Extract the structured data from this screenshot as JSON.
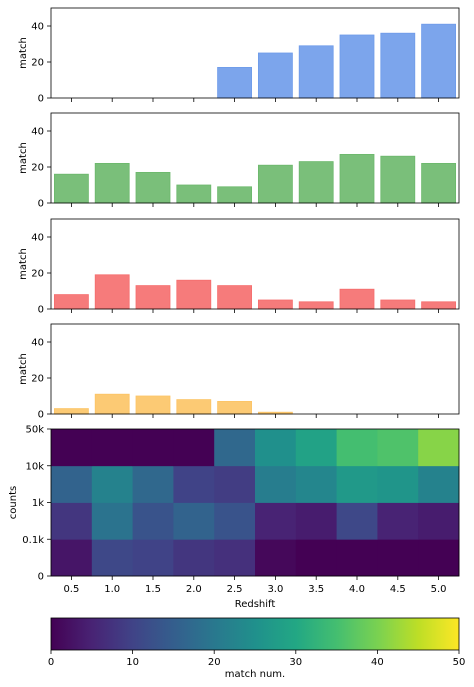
{
  "chart_data": [
    {
      "type": "bar",
      "x": [
        0.5,
        1.0,
        1.5,
        2.0,
        2.5,
        3.0,
        3.5,
        4.0,
        4.5,
        5.0
      ],
      "values": [
        0,
        0,
        0,
        0,
        17,
        25,
        29,
        35,
        36,
        41
      ],
      "ylabel": "match",
      "ylim": [
        0,
        50
      ],
      "yticks": [
        "0",
        "20",
        "40"
      ],
      "color": "#6e9bea"
    },
    {
      "type": "bar",
      "x": [
        0.5,
        1.0,
        1.5,
        2.0,
        2.5,
        3.0,
        3.5,
        4.0,
        4.5,
        5.0
      ],
      "values": [
        16,
        22,
        17,
        10,
        9,
        21,
        23,
        27,
        26,
        22
      ],
      "ylabel": "match",
      "ylim": [
        0,
        50
      ],
      "yticks": [
        "0",
        "20",
        "40"
      ],
      "color": "#6cb86c"
    },
    {
      "type": "bar",
      "x": [
        0.5,
        1.0,
        1.5,
        2.0,
        2.5,
        3.0,
        3.5,
        4.0,
        4.5,
        5.0
      ],
      "values": [
        8,
        19,
        13,
        16,
        13,
        5,
        4,
        11,
        5,
        4
      ],
      "ylabel": "match",
      "ylim": [
        0,
        50
      ],
      "yticks": [
        "0",
        "20",
        "40"
      ],
      "color": "#f56d6d"
    },
    {
      "type": "bar",
      "x": [
        0.5,
        1.0,
        1.5,
        2.0,
        2.5,
        3.0,
        3.5,
        4.0,
        4.5,
        5.0
      ],
      "values": [
        3,
        11,
        10,
        8,
        7,
        1,
        0,
        0,
        0,
        0
      ],
      "ylabel": "match",
      "ylim": [
        0,
        50
      ],
      "yticks": [
        "0",
        "20",
        "40"
      ],
      "color": "#fcc465"
    },
    {
      "type": "heatmap",
      "x": [
        0.5,
        1.0,
        1.5,
        2.0,
        2.5,
        3.0,
        3.5,
        4.0,
        4.5,
        5.0
      ],
      "xticklabels": [
        "0.5",
        "1.0",
        "1.5",
        "2.0",
        "2.5",
        "3.0",
        "3.5",
        "4.0",
        "4.5",
        "5.0"
      ],
      "xlabel": "Redshift",
      "ylabel": "counts",
      "yticklabels": [
        "0",
        "0.1k",
        "1k",
        "10k",
        "50k"
      ],
      "rows": [
        [
          3,
          11,
          10,
          8,
          7,
          1,
          0,
          0,
          0,
          0
        ],
        [
          8,
          19,
          13,
          16,
          13,
          5,
          4,
          11,
          5,
          4
        ],
        [
          16,
          22,
          17,
          10,
          9,
          21,
          23,
          27,
          26,
          22
        ],
        [
          0,
          0,
          0,
          0,
          17,
          25,
          29,
          35,
          36,
          41
        ]
      ],
      "colorbar": {
        "label": "match num.",
        "range": [
          0,
          50
        ],
        "ticks": [
          "0",
          "10",
          "20",
          "30",
          "40",
          "50"
        ],
        "colormap": "viridis"
      }
    }
  ]
}
